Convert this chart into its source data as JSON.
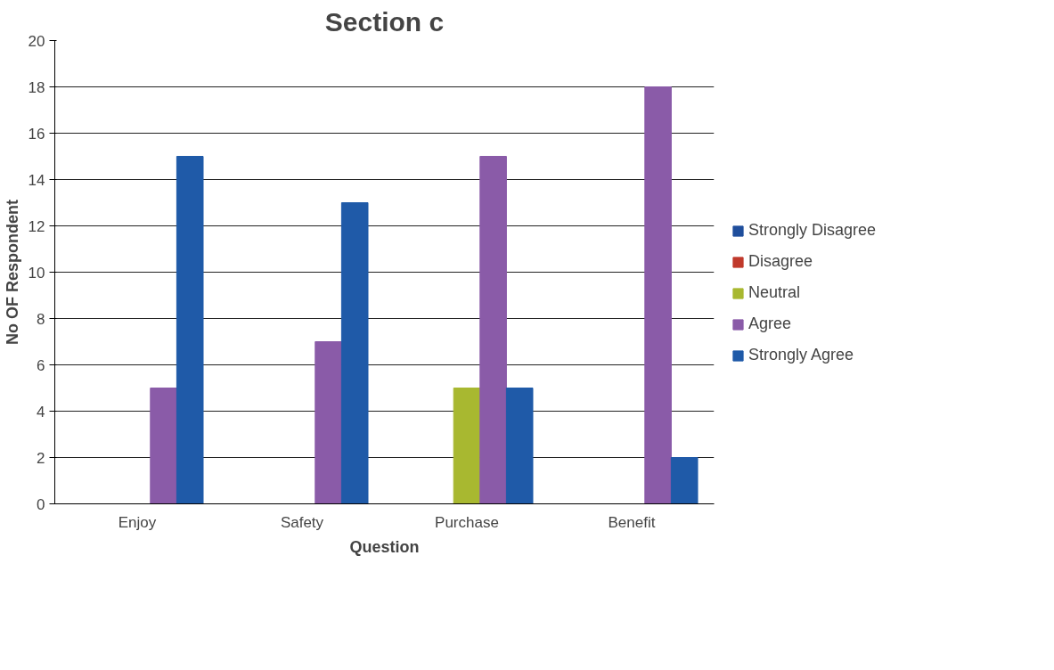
{
  "chart_data": {
    "type": "bar",
    "title": "Section c",
    "xlabel": "Question",
    "ylabel": "No OF Respondent",
    "categories": [
      "Enjoy",
      "Safety",
      "Purchase",
      "Benefit"
    ],
    "series": [
      {
        "name": "Strongly Disagree",
        "color": "#1f4e9c",
        "values": [
          0,
          0,
          0,
          0
        ]
      },
      {
        "name": "Disagree",
        "color": "#c0392b",
        "values": [
          0,
          0,
          0,
          0
        ]
      },
      {
        "name": "Neutral",
        "color": "#a8b830",
        "values": [
          0,
          0,
          5,
          0
        ]
      },
      {
        "name": "Agree",
        "color": "#8a5ba8",
        "values": [
          5,
          7,
          15,
          18
        ]
      },
      {
        "name": "Strongly Agree",
        "color": "#1f5aa8",
        "values": [
          15,
          13,
          5,
          2
        ]
      }
    ],
    "ylim": [
      0,
      20
    ],
    "yticks": [
      0,
      2,
      4,
      6,
      8,
      10,
      12,
      14,
      16,
      18,
      20
    ],
    "grid": "y",
    "legend": "right"
  }
}
